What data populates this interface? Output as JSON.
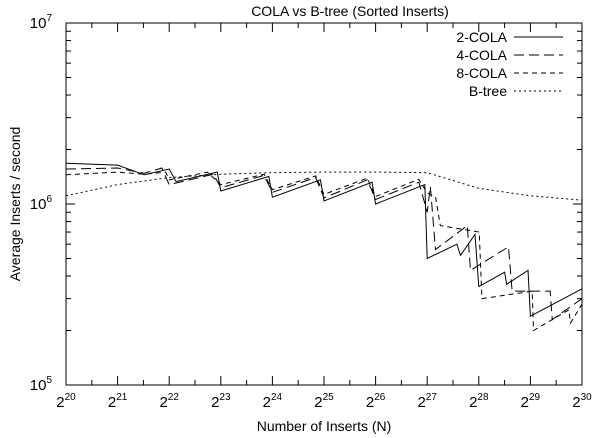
{
  "chart_data": {
    "type": "line",
    "title": "COLA vs B-tree (Sorted Inserts)",
    "xlabel": "Number of Inserts (N)",
    "ylabel": "Average Inserts / second",
    "x_scale": "log2",
    "y_scale": "log10",
    "xlim": [
      1048576,
      1073741824
    ],
    "ylim": [
      100000,
      10000000
    ],
    "x_ticks": [
      {
        "base": "2",
        "exp": "20",
        "value": 1048576
      },
      {
        "base": "2",
        "exp": "21",
        "value": 2097152
      },
      {
        "base": "2",
        "exp": "22",
        "value": 4194304
      },
      {
        "base": "2",
        "exp": "23",
        "value": 8388608
      },
      {
        "base": "2",
        "exp": "24",
        "value": 16777216
      },
      {
        "base": "2",
        "exp": "25",
        "value": 33554432
      },
      {
        "base": "2",
        "exp": "26",
        "value": 67108864
      },
      {
        "base": "2",
        "exp": "27",
        "value": 134217728
      },
      {
        "base": "2",
        "exp": "28",
        "value": 268435456
      },
      {
        "base": "2",
        "exp": "29",
        "value": 536870912
      },
      {
        "base": "2",
        "exp": "30",
        "value": 1073741824
      }
    ],
    "y_ticks": [
      {
        "base": "10",
        "exp": "5",
        "value": 100000
      },
      {
        "base": "10",
        "exp": "6",
        "value": 1000000
      },
      {
        "base": "10",
        "exp": "7",
        "value": 10000000
      }
    ],
    "grid": false,
    "legend_position": "top-right",
    "series": [
      {
        "name": "2-COLA",
        "dash": "solid",
        "points": [
          [
            1048576,
            1680000
          ],
          [
            2097152,
            1640000
          ],
          [
            3000000,
            1450000
          ],
          [
            4194304,
            1560000
          ],
          [
            4600000,
            1330000
          ],
          [
            8000000,
            1500000
          ],
          [
            8388608,
            1180000
          ],
          [
            16000000,
            1420000
          ],
          [
            16777216,
            1090000
          ],
          [
            32000000,
            1360000
          ],
          [
            33554432,
            1040000
          ],
          [
            64000000,
            1320000
          ],
          [
            67108864,
            1000000
          ],
          [
            130000000,
            1280000
          ],
          [
            134217728,
            500000
          ],
          [
            200000000,
            600000
          ],
          [
            210000000,
            520000
          ],
          [
            255000000,
            680000
          ],
          [
            268435456,
            350000
          ],
          [
            380000000,
            420000
          ],
          [
            390000000,
            360000
          ],
          [
            520000000,
            430000
          ],
          [
            536870912,
            240000
          ],
          [
            1073741824,
            340000
          ]
        ]
      },
      {
        "name": "4-COLA",
        "dash": "long",
        "points": [
          [
            1048576,
            1560000
          ],
          [
            2097152,
            1580000
          ],
          [
            3000000,
            1480000
          ],
          [
            3800000,
            1580000
          ],
          [
            4194304,
            1280000
          ],
          [
            7600000,
            1460000
          ],
          [
            8388608,
            1230000
          ],
          [
            15000000,
            1440000
          ],
          [
            16777216,
            1160000
          ],
          [
            30000000,
            1400000
          ],
          [
            33554432,
            1080000
          ],
          [
            60000000,
            1360000
          ],
          [
            67108864,
            1060000
          ],
          [
            120000000,
            1320000
          ],
          [
            134217728,
            900000
          ],
          [
            140000000,
            1250000
          ],
          [
            150000000,
            560000
          ],
          [
            230000000,
            760000
          ],
          [
            240000000,
            430000
          ],
          [
            400000000,
            580000
          ],
          [
            420000000,
            330000
          ],
          [
            700000000,
            330000
          ],
          [
            720000000,
            230000
          ],
          [
            1073741824,
            300000
          ]
        ]
      },
      {
        "name": "8-COLA",
        "dash": "short",
        "points": [
          [
            1048576,
            1450000
          ],
          [
            2097152,
            1500000
          ],
          [
            3000000,
            1460000
          ],
          [
            4000000,
            1500000
          ],
          [
            4194304,
            1360000
          ],
          [
            7000000,
            1500000
          ],
          [
            8388608,
            1280000
          ],
          [
            15000000,
            1460000
          ],
          [
            16777216,
            1200000
          ],
          [
            30000000,
            1430000
          ],
          [
            33554432,
            1130000
          ],
          [
            60000000,
            1390000
          ],
          [
            67108864,
            1100000
          ],
          [
            120000000,
            1370000
          ],
          [
            134217728,
            1150000
          ],
          [
            150000000,
            1100000
          ],
          [
            160000000,
            760000
          ],
          [
            270000000,
            700000
          ],
          [
            280000000,
            300000
          ],
          [
            550000000,
            330000
          ],
          [
            560000000,
            200000
          ],
          [
            900000000,
            260000
          ],
          [
            920000000,
            220000
          ],
          [
            1073741824,
            280000
          ]
        ]
      },
      {
        "name": "B-tree",
        "dash": "dotted",
        "points": [
          [
            1048576,
            1110000
          ],
          [
            2097152,
            1280000
          ],
          [
            4194304,
            1400000
          ],
          [
            8388608,
            1460000
          ],
          [
            16777216,
            1490000
          ],
          [
            33554432,
            1500000
          ],
          [
            67108864,
            1500000
          ],
          [
            134217728,
            1490000
          ],
          [
            268435456,
            1220000
          ],
          [
            536870912,
            1110000
          ],
          [
            1073741824,
            1050000
          ]
        ]
      }
    ]
  }
}
